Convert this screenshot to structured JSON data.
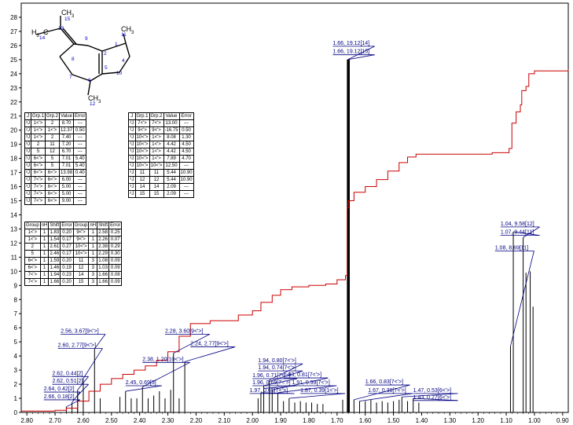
{
  "chart_data": {
    "type": "nmr-spectrum",
    "title": "",
    "xlabel": "",
    "ylabel": "",
    "xlim": [
      2.82,
      0.88
    ],
    "ylim": [
      0,
      29
    ],
    "x_ticks": [
      "2.80",
      "2.70",
      "2.60",
      "2.50",
      "2.40",
      "2.30",
      "2.20",
      "2.10",
      "2.00",
      "1.90",
      "1.80",
      "1.70",
      "1.60",
      "1.50",
      "1.40",
      "1.30",
      "1.20",
      "1.10",
      "1.00",
      "0.90"
    ],
    "x_tick_values": [
      2.8,
      2.7,
      2.6,
      2.5,
      2.4,
      2.3,
      2.2,
      2.1,
      2.0,
      1.9,
      1.8,
      1.7,
      1.6,
      1.5,
      1.4,
      1.3,
      1.2,
      1.1,
      1.0,
      0.9
    ],
    "y_ticks": [
      0,
      1,
      2,
      3,
      4,
      5,
      6,
      7,
      8,
      9,
      10,
      11,
      12,
      13,
      14,
      15,
      16,
      17,
      18,
      19,
      20,
      21,
      22,
      23,
      24,
      25,
      26,
      27,
      28
    ],
    "colors": {
      "spectrum": "#000000",
      "integral": "#cc0000",
      "label": "#000080",
      "atom_index": "#0000cc"
    },
    "peaks": [
      {
        "x": 2.66,
        "h": 0.4
      },
      {
        "x": 2.64,
        "h": 0.7
      },
      {
        "x": 2.62,
        "h": 1.2
      },
      {
        "x": 2.62,
        "h": 1.6
      },
      {
        "x": 2.6,
        "h": 2.4
      },
      {
        "x": 2.56,
        "h": 4.5
      },
      {
        "x": 2.54,
        "h": 1.0
      },
      {
        "x": 2.47,
        "h": 1.1
      },
      {
        "x": 2.45,
        "h": 1.5
      },
      {
        "x": 2.43,
        "h": 1.0
      },
      {
        "x": 2.41,
        "h": 1.0
      },
      {
        "x": 2.39,
        "h": 1.8
      },
      {
        "x": 2.37,
        "h": 1.0
      },
      {
        "x": 2.35,
        "h": 1.2
      },
      {
        "x": 2.33,
        "h": 1.5
      },
      {
        "x": 2.31,
        "h": 1.0
      },
      {
        "x": 2.29,
        "h": 1.6
      },
      {
        "x": 2.28,
        "h": 4.2
      },
      {
        "x": 2.26,
        "h": 1.0
      },
      {
        "x": 2.24,
        "h": 3.6
      },
      {
        "x": 1.98,
        "h": 1.0
      },
      {
        "x": 1.97,
        "h": 1.4
      },
      {
        "x": 1.96,
        "h": 1.9
      },
      {
        "x": 1.94,
        "h": 2.3
      },
      {
        "x": 1.93,
        "h": 1.6
      },
      {
        "x": 1.91,
        "h": 1.4
      },
      {
        "x": 1.89,
        "h": 0.8
      },
      {
        "x": 1.87,
        "h": 1.0
      },
      {
        "x": 1.85,
        "h": 0.7
      },
      {
        "x": 1.83,
        "h": 0.8
      },
      {
        "x": 1.81,
        "h": 0.7
      },
      {
        "x": 1.79,
        "h": 0.7
      },
      {
        "x": 1.77,
        "h": 0.6
      },
      {
        "x": 1.75,
        "h": 0.6
      },
      {
        "x": 1.68,
        "h": 0.9
      },
      {
        "x": 1.662,
        "h": 25.0
      },
      {
        "x": 1.658,
        "h": 25.0
      },
      {
        "x": 1.64,
        "h": 0.9
      },
      {
        "x": 1.62,
        "h": 0.8
      },
      {
        "x": 1.6,
        "h": 0.8
      },
      {
        "x": 1.58,
        "h": 0.9
      },
      {
        "x": 1.56,
        "h": 0.7
      },
      {
        "x": 1.54,
        "h": 0.8
      },
      {
        "x": 1.52,
        "h": 0.7
      },
      {
        "x": 1.5,
        "h": 0.8
      },
      {
        "x": 1.48,
        "h": 0.9
      },
      {
        "x": 1.47,
        "h": 1.1
      },
      {
        "x": 1.45,
        "h": 0.8
      },
      {
        "x": 1.43,
        "h": 1.0
      },
      {
        "x": 1.41,
        "h": 0.7
      },
      {
        "x": 1.085,
        "h": 4.7
      },
      {
        "x": 1.075,
        "h": 12.8
      },
      {
        "x": 1.04,
        "h": 12.4
      },
      {
        "x": 1.03,
        "h": 9.9
      },
      {
        "x": 1.015,
        "h": 10.0
      },
      {
        "x": 1.005,
        "h": 7.5
      }
    ],
    "integral": [
      [
        2.82,
        0.1
      ],
      [
        2.7,
        0.15
      ],
      [
        2.66,
        0.3
      ],
      [
        2.62,
        0.8
      ],
      [
        2.58,
        1.5
      ],
      [
        2.54,
        2.0
      ],
      [
        2.5,
        2.4
      ],
      [
        2.46,
        2.7
      ],
      [
        2.42,
        3.0
      ],
      [
        2.38,
        3.3
      ],
      [
        2.34,
        3.7
      ],
      [
        2.3,
        4.3
      ],
      [
        2.26,
        5.4
      ],
      [
        2.22,
        6.3
      ],
      [
        2.15,
        6.5
      ],
      [
        2.05,
        6.9
      ],
      [
        2.0,
        7.2
      ],
      [
        1.97,
        7.8
      ],
      [
        1.93,
        8.3
      ],
      [
        1.9,
        8.7
      ],
      [
        1.86,
        8.9
      ],
      [
        1.8,
        9.0
      ],
      [
        1.74,
        9.1
      ],
      [
        1.7,
        9.4
      ],
      [
        1.67,
        9.7
      ],
      [
        1.664,
        14.5
      ],
      [
        1.66,
        15.0
      ],
      [
        1.64,
        15.6
      ],
      [
        1.6,
        16.0
      ],
      [
        1.56,
        16.5
      ],
      [
        1.52,
        17.1
      ],
      [
        1.48,
        17.7
      ],
      [
        1.45,
        18.1
      ],
      [
        1.42,
        18.3
      ],
      [
        1.3,
        18.3
      ],
      [
        1.15,
        18.4
      ],
      [
        1.09,
        18.7
      ],
      [
        1.08,
        20.5
      ],
      [
        1.065,
        21.3
      ],
      [
        1.05,
        21.8
      ],
      [
        1.045,
        22.8
      ],
      [
        1.03,
        23.1
      ],
      [
        1.02,
        24.0
      ],
      [
        1.0,
        24.2
      ],
      [
        0.88,
        24.3
      ]
    ],
    "annotations": [
      {
        "text": "1.66, 19.12[14]",
        "x": 1.662,
        "y": 25.0,
        "lx": 1.715,
        "ly": 26.0
      },
      {
        "text": "1.66, 19.12[15]",
        "x": 1.662,
        "y": 25.0,
        "lx": 1.715,
        "ly": 25.4
      },
      {
        "text": "1.04, 9.58[12]",
        "x": 1.04,
        "y": 12.4,
        "lx": 1.12,
        "ly": 13.2
      },
      {
        "text": "1.07, 9.44[11]",
        "x": 1.075,
        "y": 12.8,
        "lx": 1.12,
        "ly": 12.6
      },
      {
        "text": "1.08, 8.69[11]",
        "x": 1.085,
        "y": 4.7,
        "lx": 1.14,
        "ly": 11.5
      },
      {
        "text": "2.56, 3.67[9<'>]",
        "x": 2.56,
        "y": 4.5,
        "lx": 2.68,
        "ly": 5.6
      },
      {
        "text": "2.60, 2.77[9<'>]",
        "x": 2.6,
        "y": 2.4,
        "lx": 2.69,
        "ly": 4.6
      },
      {
        "text": "2.28, 3.60[9<'>]",
        "x": 2.28,
        "y": 4.2,
        "lx": 2.31,
        "ly": 5.6
      },
      {
        "text": "2.24, 2.77[9<'>]",
        "x": 2.24,
        "y": 3.6,
        "lx": 2.22,
        "ly": 4.7
      },
      {
        "text": "2.38, 1.20[10<'>]",
        "x": 2.39,
        "y": 1.8,
        "lx": 2.39,
        "ly": 3.6
      },
      {
        "text": "2.45, 0.69[5]",
        "x": 2.45,
        "y": 1.5,
        "lx": 2.45,
        "ly": 1.95
      },
      {
        "text": "2.62, 0.44[2]",
        "x": 2.62,
        "y": 1.6,
        "lx": 2.71,
        "ly": 2.6
      },
      {
        "text": "2.62, 0.51[2]",
        "x": 2.62,
        "y": 1.2,
        "lx": 2.71,
        "ly": 2.05
      },
      {
        "text": "2.64, 0.42[2]",
        "x": 2.64,
        "y": 0.7,
        "lx": 2.74,
        "ly": 1.5
      },
      {
        "text": "2.66, 0.18[2]",
        "x": 2.66,
        "y": 0.4,
        "lx": 2.74,
        "ly": 0.95
      },
      {
        "text": "1.94, 0.80[7<'>]",
        "x": 1.94,
        "y": 2.3,
        "lx": 1.98,
        "ly": 3.5
      },
      {
        "text": "1.94, 0.74[7<'>]",
        "x": 1.94,
        "y": 2.2,
        "lx": 1.98,
        "ly": 3.0
      },
      {
        "text": "1.96, 0.71[7<'>]",
        "x": 1.96,
        "y": 1.9,
        "lx": 2.0,
        "ly": 2.45
      },
      {
        "text": "1.96, 0.69[7<'>]",
        "x": 1.96,
        "y": 1.7,
        "lx": 2.0,
        "ly": 1.95
      },
      {
        "text": "1.97, 0.65[7<'>]",
        "x": 1.97,
        "y": 1.4,
        "lx": 2.01,
        "ly": 1.4
      },
      {
        "text": "1.93, 0.81[7<'>]",
        "x": 1.93,
        "y": 1.6,
        "lx": 1.89,
        "ly": 2.5
      },
      {
        "text": "1.91, 0.99[7<'>]",
        "x": 1.91,
        "y": 1.4,
        "lx": 1.86,
        "ly": 1.95
      },
      {
        "text": "1.87, 0.39[1<'>]",
        "x": 1.87,
        "y": 1.0,
        "lx": 1.83,
        "ly": 1.4
      },
      {
        "text": "1.66, 0.83[7<'>]",
        "x": 1.64,
        "y": 0.9,
        "lx": 1.6,
        "ly": 2.0
      },
      {
        "text": "1.67, 0.38[7<'>]",
        "x": 1.62,
        "y": 0.8,
        "lx": 1.59,
        "ly": 1.4
      },
      {
        "text": "1.47, 0.53[6<'>]",
        "x": 1.47,
        "y": 1.1,
        "lx": 1.43,
        "ly": 1.4
      },
      {
        "text": "1.43, 0.27[6<'>]",
        "x": 1.43,
        "y": 1.0,
        "lx": 1.43,
        "ly": 0.9
      }
    ]
  },
  "molecule": {
    "atoms": [
      {
        "sym": "CH",
        "sub": "3",
        "idx": "15"
      },
      {
        "sym": "H",
        "sub": "3",
        "tail": "C",
        "idx": "14"
      },
      {
        "idx": "13"
      },
      {
        "idx": "9"
      },
      {
        "idx": "8"
      },
      {
        "idx": "7"
      },
      {
        "idx": "6"
      },
      {
        "idx": "5"
      },
      {
        "idx": "2"
      },
      {
        "idx": "1"
      },
      {
        "idx": "10"
      },
      {
        "idx": "4"
      },
      {
        "sym": "CH",
        "sub": "3",
        "idx": "11"
      },
      {
        "sym": "CH",
        "sub": "3",
        "idx": "12"
      }
    ]
  },
  "coupling_table": {
    "headers": [
      "J",
      "Grp.1",
      "Grp.2",
      "Value",
      "Error"
    ],
    "rows": [
      [
        "³J",
        "1<'>",
        "2",
        "8.70",
        "---"
      ],
      [
        "²J",
        "1<'>",
        "1<'>",
        "12.37",
        "0.50"
      ],
      [
        "³J",
        "1<'>",
        "2",
        "7.40",
        "---"
      ],
      [
        "³J",
        "2",
        "11",
        "7.20",
        "---"
      ],
      [
        "³J",
        "5",
        "12",
        "6.70",
        "---"
      ],
      [
        "³J",
        "6<'>",
        "5",
        "7.01",
        "5.40"
      ],
      [
        "³J",
        "6<'>",
        "5",
        "7.01",
        "5.40"
      ],
      [
        "²J",
        "6<'>",
        "6<'>",
        "13.98",
        "0.40"
      ],
      [
        "³J",
        "7<'>",
        "6<'>",
        "6.00",
        "---"
      ],
      [
        "³J",
        "7<'>",
        "6<'>",
        "5.00",
        "---"
      ],
      [
        "³J",
        "7<'>",
        "6<'>",
        "5.00",
        "---"
      ],
      [
        "³J",
        "7<'>",
        "6<'>",
        "9.00",
        "---"
      ]
    ],
    "rows_right": [
      [
        "²J",
        "7<'>",
        "7<'>",
        "13.00",
        "---"
      ],
      [
        "²J",
        "9<'>",
        "9<'>",
        "-16.75",
        "0.50"
      ],
      [
        "³J",
        "10<'>",
        "1<'>",
        "8.08",
        "1.30"
      ],
      [
        "³J",
        "10<'>",
        "1<'>",
        "4.42",
        "4.50"
      ],
      [
        "³J",
        "10<'>",
        "1<'>",
        "4.42",
        "4.50"
      ],
      [
        "³J",
        "10<'>",
        "1<'>",
        "7.89",
        "4.70"
      ],
      [
        "²J",
        "10<'>",
        "10<'>",
        "12.50",
        "---"
      ],
      [
        "⁵J",
        "11",
        "11",
        "5.44",
        "10.90"
      ],
      [
        "⁵J",
        "12",
        "12",
        "5.44",
        "10.90"
      ],
      [
        "⁵J",
        "14",
        "14",
        "2.09",
        "---"
      ],
      [
        "⁵J",
        "15",
        "15",
        "2.09",
        "---"
      ]
    ]
  },
  "shift_table": {
    "headers": [
      "Group",
      "nH",
      "Shift",
      "Error",
      "Group",
      "nH",
      "Shift",
      "Error"
    ],
    "rows": [
      [
        "1<'>",
        "1",
        "1.83",
        "0.20",
        "9<'>",
        "1",
        "2.58",
        "0.25"
      ],
      [
        "1<'>",
        "1",
        "1.54",
        "0.17",
        "9<'>",
        "1",
        "2.26",
        "0.07"
      ],
      [
        "2",
        "1",
        "2.61",
        "0.27",
        "10<'>",
        "1",
        "2.38",
        "0.29"
      ],
      [
        "5",
        "1",
        "2.46",
        "0.17",
        "10<'>",
        "1",
        "2.29",
        "0.30"
      ],
      [
        "6<'>",
        "1",
        "1.59",
        "0.20",
        "11",
        "3",
        "1.08",
        "0.09"
      ],
      [
        "6<'>",
        "1",
        "1.46",
        "0.19",
        "12",
        "3",
        "1.03",
        "0.09"
      ],
      [
        "7<'>",
        "1",
        "1.94",
        "0.23",
        "14",
        "3",
        "1.66",
        "0.08"
      ],
      [
        "7<'>",
        "1",
        "1.66",
        "0.20",
        "15",
        "3",
        "1.66",
        "0.09"
      ]
    ]
  }
}
